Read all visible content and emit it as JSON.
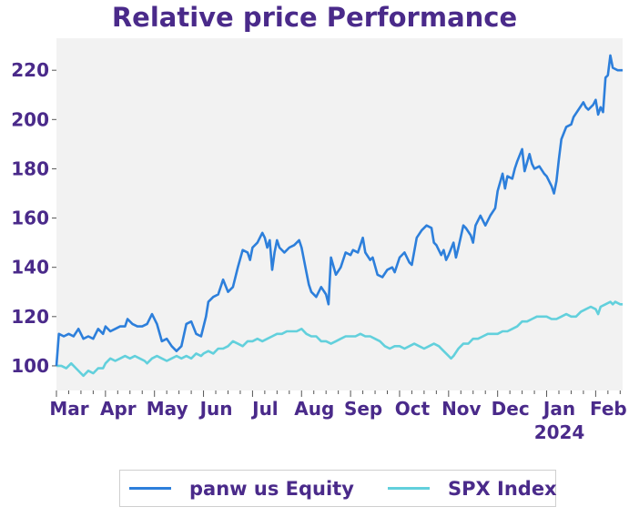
{
  "chart_data": {
    "type": "line",
    "title": "Relative price Performance",
    "xlabel": "",
    "ylabel": "",
    "ylim": [
      90,
      233
    ],
    "y_ticks": [
      100,
      120,
      140,
      160,
      180,
      200,
      220
    ],
    "x_ticks": [
      {
        "label": "Mar",
        "pos": 0.0
      },
      {
        "label": "Apr",
        "pos": 1.0
      },
      {
        "label": "May",
        "pos": 2.0
      },
      {
        "label": "Jun",
        "pos": 3.0
      },
      {
        "label": "Jul",
        "pos": 4.0
      },
      {
        "label": "Aug",
        "pos": 5.0
      },
      {
        "label": "Sep",
        "pos": 6.0
      },
      {
        "label": "Oct",
        "pos": 7.0
      },
      {
        "label": "Nov",
        "pos": 8.0
      },
      {
        "label": "Dec",
        "pos": 9.0
      },
      {
        "label": "Jan",
        "pos": 10.0
      },
      {
        "label": "Feb",
        "pos": 11.0
      }
    ],
    "year_label": {
      "text": "2024",
      "pos": 10.0
    },
    "xlim": [
      0,
      11.55
    ],
    "grid": false,
    "legend_position": "bottom-center",
    "series": [
      {
        "name": "panw us Equity",
        "color": "#2d7fdb",
        "points": [
          [
            0.0,
            100
          ],
          [
            0.05,
            113
          ],
          [
            0.15,
            112
          ],
          [
            0.25,
            113
          ],
          [
            0.35,
            112
          ],
          [
            0.45,
            115
          ],
          [
            0.55,
            111
          ],
          [
            0.65,
            112
          ],
          [
            0.75,
            111
          ],
          [
            0.85,
            115
          ],
          [
            0.95,
            113
          ],
          [
            1.0,
            116
          ],
          [
            1.1,
            114
          ],
          [
            1.2,
            115
          ],
          [
            1.3,
            116
          ],
          [
            1.4,
            116
          ],
          [
            1.45,
            119
          ],
          [
            1.55,
            117
          ],
          [
            1.65,
            116
          ],
          [
            1.75,
            116
          ],
          [
            1.85,
            117
          ],
          [
            1.95,
            121
          ],
          [
            2.05,
            117
          ],
          [
            2.15,
            110
          ],
          [
            2.25,
            111
          ],
          [
            2.35,
            108
          ],
          [
            2.45,
            106
          ],
          [
            2.55,
            108
          ],
          [
            2.65,
            117
          ],
          [
            2.75,
            118
          ],
          [
            2.85,
            113
          ],
          [
            2.95,
            112
          ],
          [
            3.05,
            120
          ],
          [
            3.1,
            126
          ],
          [
            3.2,
            128
          ],
          [
            3.3,
            129
          ],
          [
            3.4,
            135
          ],
          [
            3.5,
            130
          ],
          [
            3.6,
            132
          ],
          [
            3.7,
            140
          ],
          [
            3.8,
            147
          ],
          [
            3.9,
            146
          ],
          [
            3.95,
            143
          ],
          [
            4.0,
            148
          ],
          [
            4.1,
            150
          ],
          [
            4.2,
            154
          ],
          [
            4.25,
            152
          ],
          [
            4.3,
            148
          ],
          [
            4.35,
            151
          ],
          [
            4.4,
            139
          ],
          [
            4.45,
            146
          ],
          [
            4.5,
            151
          ],
          [
            4.55,
            148
          ],
          [
            4.65,
            146
          ],
          [
            4.75,
            148
          ],
          [
            4.85,
            149
          ],
          [
            4.95,
            151
          ],
          [
            5.0,
            148
          ],
          [
            5.1,
            138
          ],
          [
            5.15,
            133
          ],
          [
            5.2,
            130
          ],
          [
            5.3,
            128
          ],
          [
            5.4,
            132
          ],
          [
            5.5,
            129
          ],
          [
            5.55,
            125
          ],
          [
            5.6,
            144
          ],
          [
            5.7,
            137
          ],
          [
            5.8,
            140
          ],
          [
            5.9,
            146
          ],
          [
            6.0,
            145
          ],
          [
            6.05,
            147
          ],
          [
            6.15,
            146
          ],
          [
            6.25,
            152
          ],
          [
            6.3,
            146
          ],
          [
            6.4,
            143
          ],
          [
            6.45,
            144
          ],
          [
            6.55,
            137
          ],
          [
            6.65,
            136
          ],
          [
            6.75,
            139
          ],
          [
            6.85,
            140
          ],
          [
            6.9,
            138
          ],
          [
            7.0,
            144
          ],
          [
            7.1,
            146
          ],
          [
            7.2,
            142
          ],
          [
            7.25,
            141
          ],
          [
            7.35,
            152
          ],
          [
            7.45,
            155
          ],
          [
            7.55,
            157
          ],
          [
            7.65,
            156
          ],
          [
            7.7,
            150
          ],
          [
            7.75,
            149
          ],
          [
            7.85,
            145
          ],
          [
            7.9,
            147
          ],
          [
            7.95,
            143
          ],
          [
            8.0,
            145
          ],
          [
            8.1,
            150
          ],
          [
            8.15,
            144
          ],
          [
            8.2,
            148
          ],
          [
            8.3,
            157
          ],
          [
            8.35,
            156
          ],
          [
            8.45,
            153
          ],
          [
            8.5,
            150
          ],
          [
            8.55,
            157
          ],
          [
            8.65,
            161
          ],
          [
            8.75,
            157
          ],
          [
            8.85,
            161
          ],
          [
            8.95,
            164
          ],
          [
            9.0,
            171
          ],
          [
            9.1,
            178
          ],
          [
            9.15,
            172
          ],
          [
            9.2,
            177
          ],
          [
            9.3,
            176
          ],
          [
            9.35,
            180
          ],
          [
            9.4,
            183
          ],
          [
            9.5,
            188
          ],
          [
            9.55,
            179
          ],
          [
            9.65,
            186
          ],
          [
            9.7,
            182
          ],
          [
            9.75,
            180
          ],
          [
            9.85,
            181
          ],
          [
            9.95,
            178
          ],
          [
            10.0,
            177
          ],
          [
            10.1,
            173
          ],
          [
            10.15,
            170
          ],
          [
            10.2,
            175
          ],
          [
            10.25,
            184
          ],
          [
            10.3,
            192
          ],
          [
            10.4,
            197
          ],
          [
            10.5,
            198
          ],
          [
            10.55,
            201
          ],
          [
            10.65,
            204
          ],
          [
            10.75,
            207
          ],
          [
            10.8,
            205
          ],
          [
            10.85,
            204
          ],
          [
            10.95,
            206
          ],
          [
            11.0,
            208
          ],
          [
            11.05,
            202
          ],
          [
            11.1,
            205
          ],
          [
            11.15,
            203
          ],
          [
            11.2,
            217
          ],
          [
            11.25,
            218
          ],
          [
            11.3,
            226
          ],
          [
            11.35,
            221
          ],
          [
            11.45,
            220
          ],
          [
            11.55,
            220
          ]
        ]
      },
      {
        "name": "SPX Index",
        "color": "#62d0dc",
        "points": [
          [
            0.0,
            100
          ],
          [
            0.1,
            100
          ],
          [
            0.2,
            99
          ],
          [
            0.3,
            101
          ],
          [
            0.4,
            99
          ],
          [
            0.5,
            97
          ],
          [
            0.55,
            96
          ],
          [
            0.65,
            98
          ],
          [
            0.75,
            97
          ],
          [
            0.85,
            99
          ],
          [
            0.95,
            99
          ],
          [
            1.0,
            101
          ],
          [
            1.1,
            103
          ],
          [
            1.2,
            102
          ],
          [
            1.3,
            103
          ],
          [
            1.4,
            104
          ],
          [
            1.5,
            103
          ],
          [
            1.6,
            104
          ],
          [
            1.7,
            103
          ],
          [
            1.8,
            102
          ],
          [
            1.85,
            101
          ],
          [
            1.95,
            103
          ],
          [
            2.05,
            104
          ],
          [
            2.15,
            103
          ],
          [
            2.25,
            102
          ],
          [
            2.35,
            103
          ],
          [
            2.45,
            104
          ],
          [
            2.55,
            103
          ],
          [
            2.65,
            104
          ],
          [
            2.75,
            103
          ],
          [
            2.85,
            105
          ],
          [
            2.95,
            104
          ],
          [
            3.0,
            105
          ],
          [
            3.1,
            106
          ],
          [
            3.2,
            105
          ],
          [
            3.3,
            107
          ],
          [
            3.4,
            107
          ],
          [
            3.5,
            108
          ],
          [
            3.6,
            110
          ],
          [
            3.7,
            109
          ],
          [
            3.8,
            108
          ],
          [
            3.9,
            110
          ],
          [
            4.0,
            110
          ],
          [
            4.1,
            111
          ],
          [
            4.2,
            110
          ],
          [
            4.3,
            111
          ],
          [
            4.4,
            112
          ],
          [
            4.5,
            113
          ],
          [
            4.6,
            113
          ],
          [
            4.7,
            114
          ],
          [
            4.8,
            114
          ],
          [
            4.9,
            114
          ],
          [
            5.0,
            115
          ],
          [
            5.1,
            113
          ],
          [
            5.2,
            112
          ],
          [
            5.3,
            112
          ],
          [
            5.4,
            110
          ],
          [
            5.5,
            110
          ],
          [
            5.6,
            109
          ],
          [
            5.7,
            110
          ],
          [
            5.8,
            111
          ],
          [
            5.9,
            112
          ],
          [
            6.0,
            112
          ],
          [
            6.1,
            112
          ],
          [
            6.2,
            113
          ],
          [
            6.3,
            112
          ],
          [
            6.4,
            112
          ],
          [
            6.5,
            111
          ],
          [
            6.6,
            110
          ],
          [
            6.7,
            108
          ],
          [
            6.8,
            107
          ],
          [
            6.9,
            108
          ],
          [
            7.0,
            108
          ],
          [
            7.1,
            107
          ],
          [
            7.2,
            108
          ],
          [
            7.3,
            109
          ],
          [
            7.4,
            108
          ],
          [
            7.5,
            107
          ],
          [
            7.6,
            108
          ],
          [
            7.7,
            109
          ],
          [
            7.8,
            108
          ],
          [
            7.9,
            106
          ],
          [
            8.0,
            104
          ],
          [
            8.05,
            103
          ],
          [
            8.1,
            104
          ],
          [
            8.2,
            107
          ],
          [
            8.3,
            109
          ],
          [
            8.4,
            109
          ],
          [
            8.5,
            111
          ],
          [
            8.6,
            111
          ],
          [
            8.7,
            112
          ],
          [
            8.8,
            113
          ],
          [
            8.9,
            113
          ],
          [
            9.0,
            113
          ],
          [
            9.1,
            114
          ],
          [
            9.2,
            114
          ],
          [
            9.3,
            115
          ],
          [
            9.4,
            116
          ],
          [
            9.5,
            118
          ],
          [
            9.6,
            118
          ],
          [
            9.7,
            119
          ],
          [
            9.8,
            120
          ],
          [
            9.9,
            120
          ],
          [
            10.0,
            120
          ],
          [
            10.1,
            119
          ],
          [
            10.2,
            119
          ],
          [
            10.3,
            120
          ],
          [
            10.4,
            121
          ],
          [
            10.5,
            120
          ],
          [
            10.6,
            120
          ],
          [
            10.7,
            122
          ],
          [
            10.8,
            123
          ],
          [
            10.9,
            124
          ],
          [
            11.0,
            123
          ],
          [
            11.05,
            121
          ],
          [
            11.1,
            124
          ],
          [
            11.2,
            125
          ],
          [
            11.3,
            126
          ],
          [
            11.35,
            125
          ],
          [
            11.4,
            126
          ],
          [
            11.5,
            125
          ],
          [
            11.55,
            125
          ]
        ]
      }
    ]
  }
}
